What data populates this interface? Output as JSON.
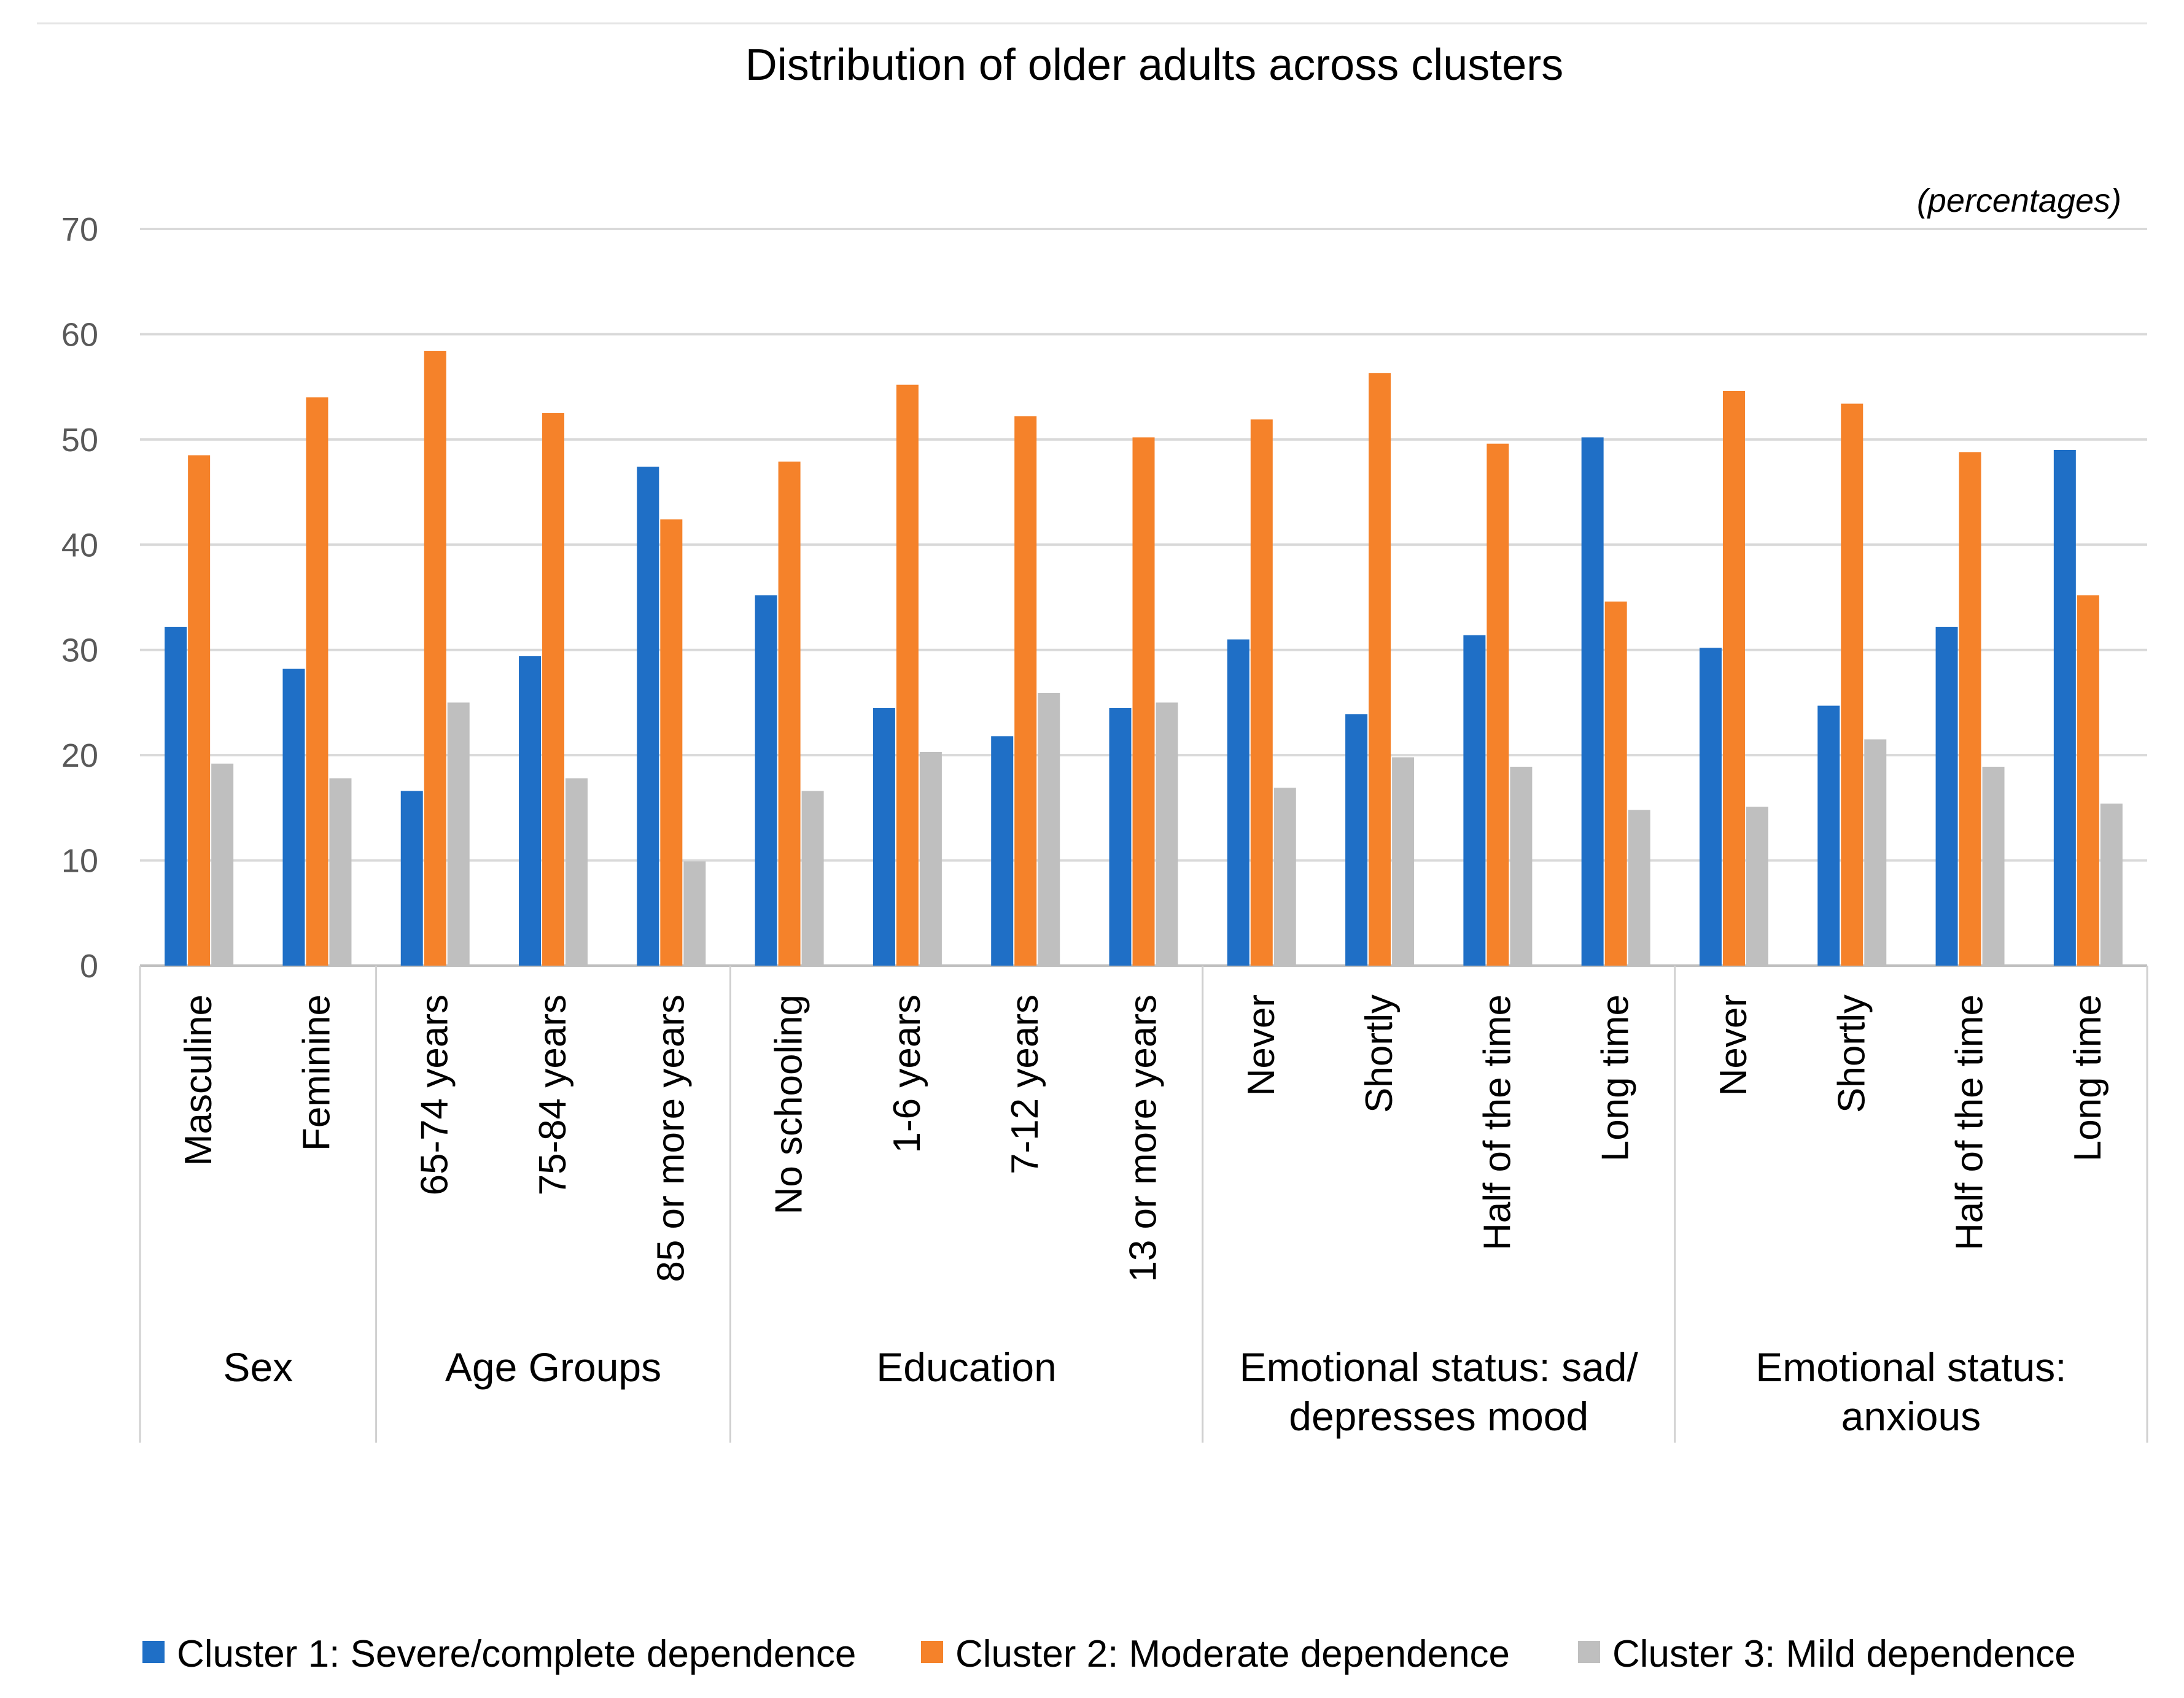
{
  "chart_data": {
    "type": "bar",
    "title": "Distribution of older adults across clusters",
    "unit_note": "(percentages)",
    "ylim": [
      0,
      70
    ],
    "yticks": [
      0,
      10,
      20,
      30,
      40,
      50,
      60,
      70
    ],
    "grid": true,
    "legend_position": "bottom",
    "groups": [
      {
        "label_lines": [
          "Sex"
        ],
        "categories": [
          "Masculine",
          "Feminine"
        ]
      },
      {
        "label_lines": [
          "Age Groups"
        ],
        "categories": [
          "65-74 years",
          "75-84 years",
          "85 or more years"
        ]
      },
      {
        "label_lines": [
          "Education"
        ],
        "categories": [
          "No schooling",
          "1-6 years",
          "7-12 years",
          "13 or more years"
        ]
      },
      {
        "label_lines": [
          "Emotional status: sad/",
          "depresses mood"
        ],
        "categories": [
          "Never",
          "Shortly",
          "Half of the time",
          "Long time"
        ]
      },
      {
        "label_lines": [
          "Emotional status:",
          "anxious"
        ],
        "categories": [
          "Never",
          "Shortly",
          "Half of the time",
          "Long time"
        ]
      }
    ],
    "series": [
      {
        "name": "Cluster 1: Severe/complete dependence",
        "color": "#1f6fc6",
        "values": [
          32.2,
          28.2,
          16.6,
          29.4,
          47.4,
          35.2,
          24.5,
          21.8,
          24.5,
          31.0,
          23.9,
          31.4,
          50.2,
          30.2,
          24.7,
          32.2,
          49.0
        ]
      },
      {
        "name": "Cluster 2: Moderate dependence",
        "color": "#f5822a",
        "values": [
          48.5,
          54.0,
          58.4,
          52.5,
          42.4,
          47.9,
          55.2,
          52.2,
          50.2,
          51.9,
          56.3,
          49.6,
          34.6,
          54.6,
          53.4,
          48.8,
          35.2
        ]
      },
      {
        "name": "Cluster 3: Mild dependence",
        "color": "#bfbfbf",
        "values": [
          19.2,
          17.8,
          25.0,
          17.8,
          9.9,
          16.6,
          20.3,
          25.9,
          25.0,
          16.9,
          19.8,
          18.9,
          14.8,
          15.1,
          21.5,
          18.9,
          15.4
        ]
      }
    ]
  }
}
